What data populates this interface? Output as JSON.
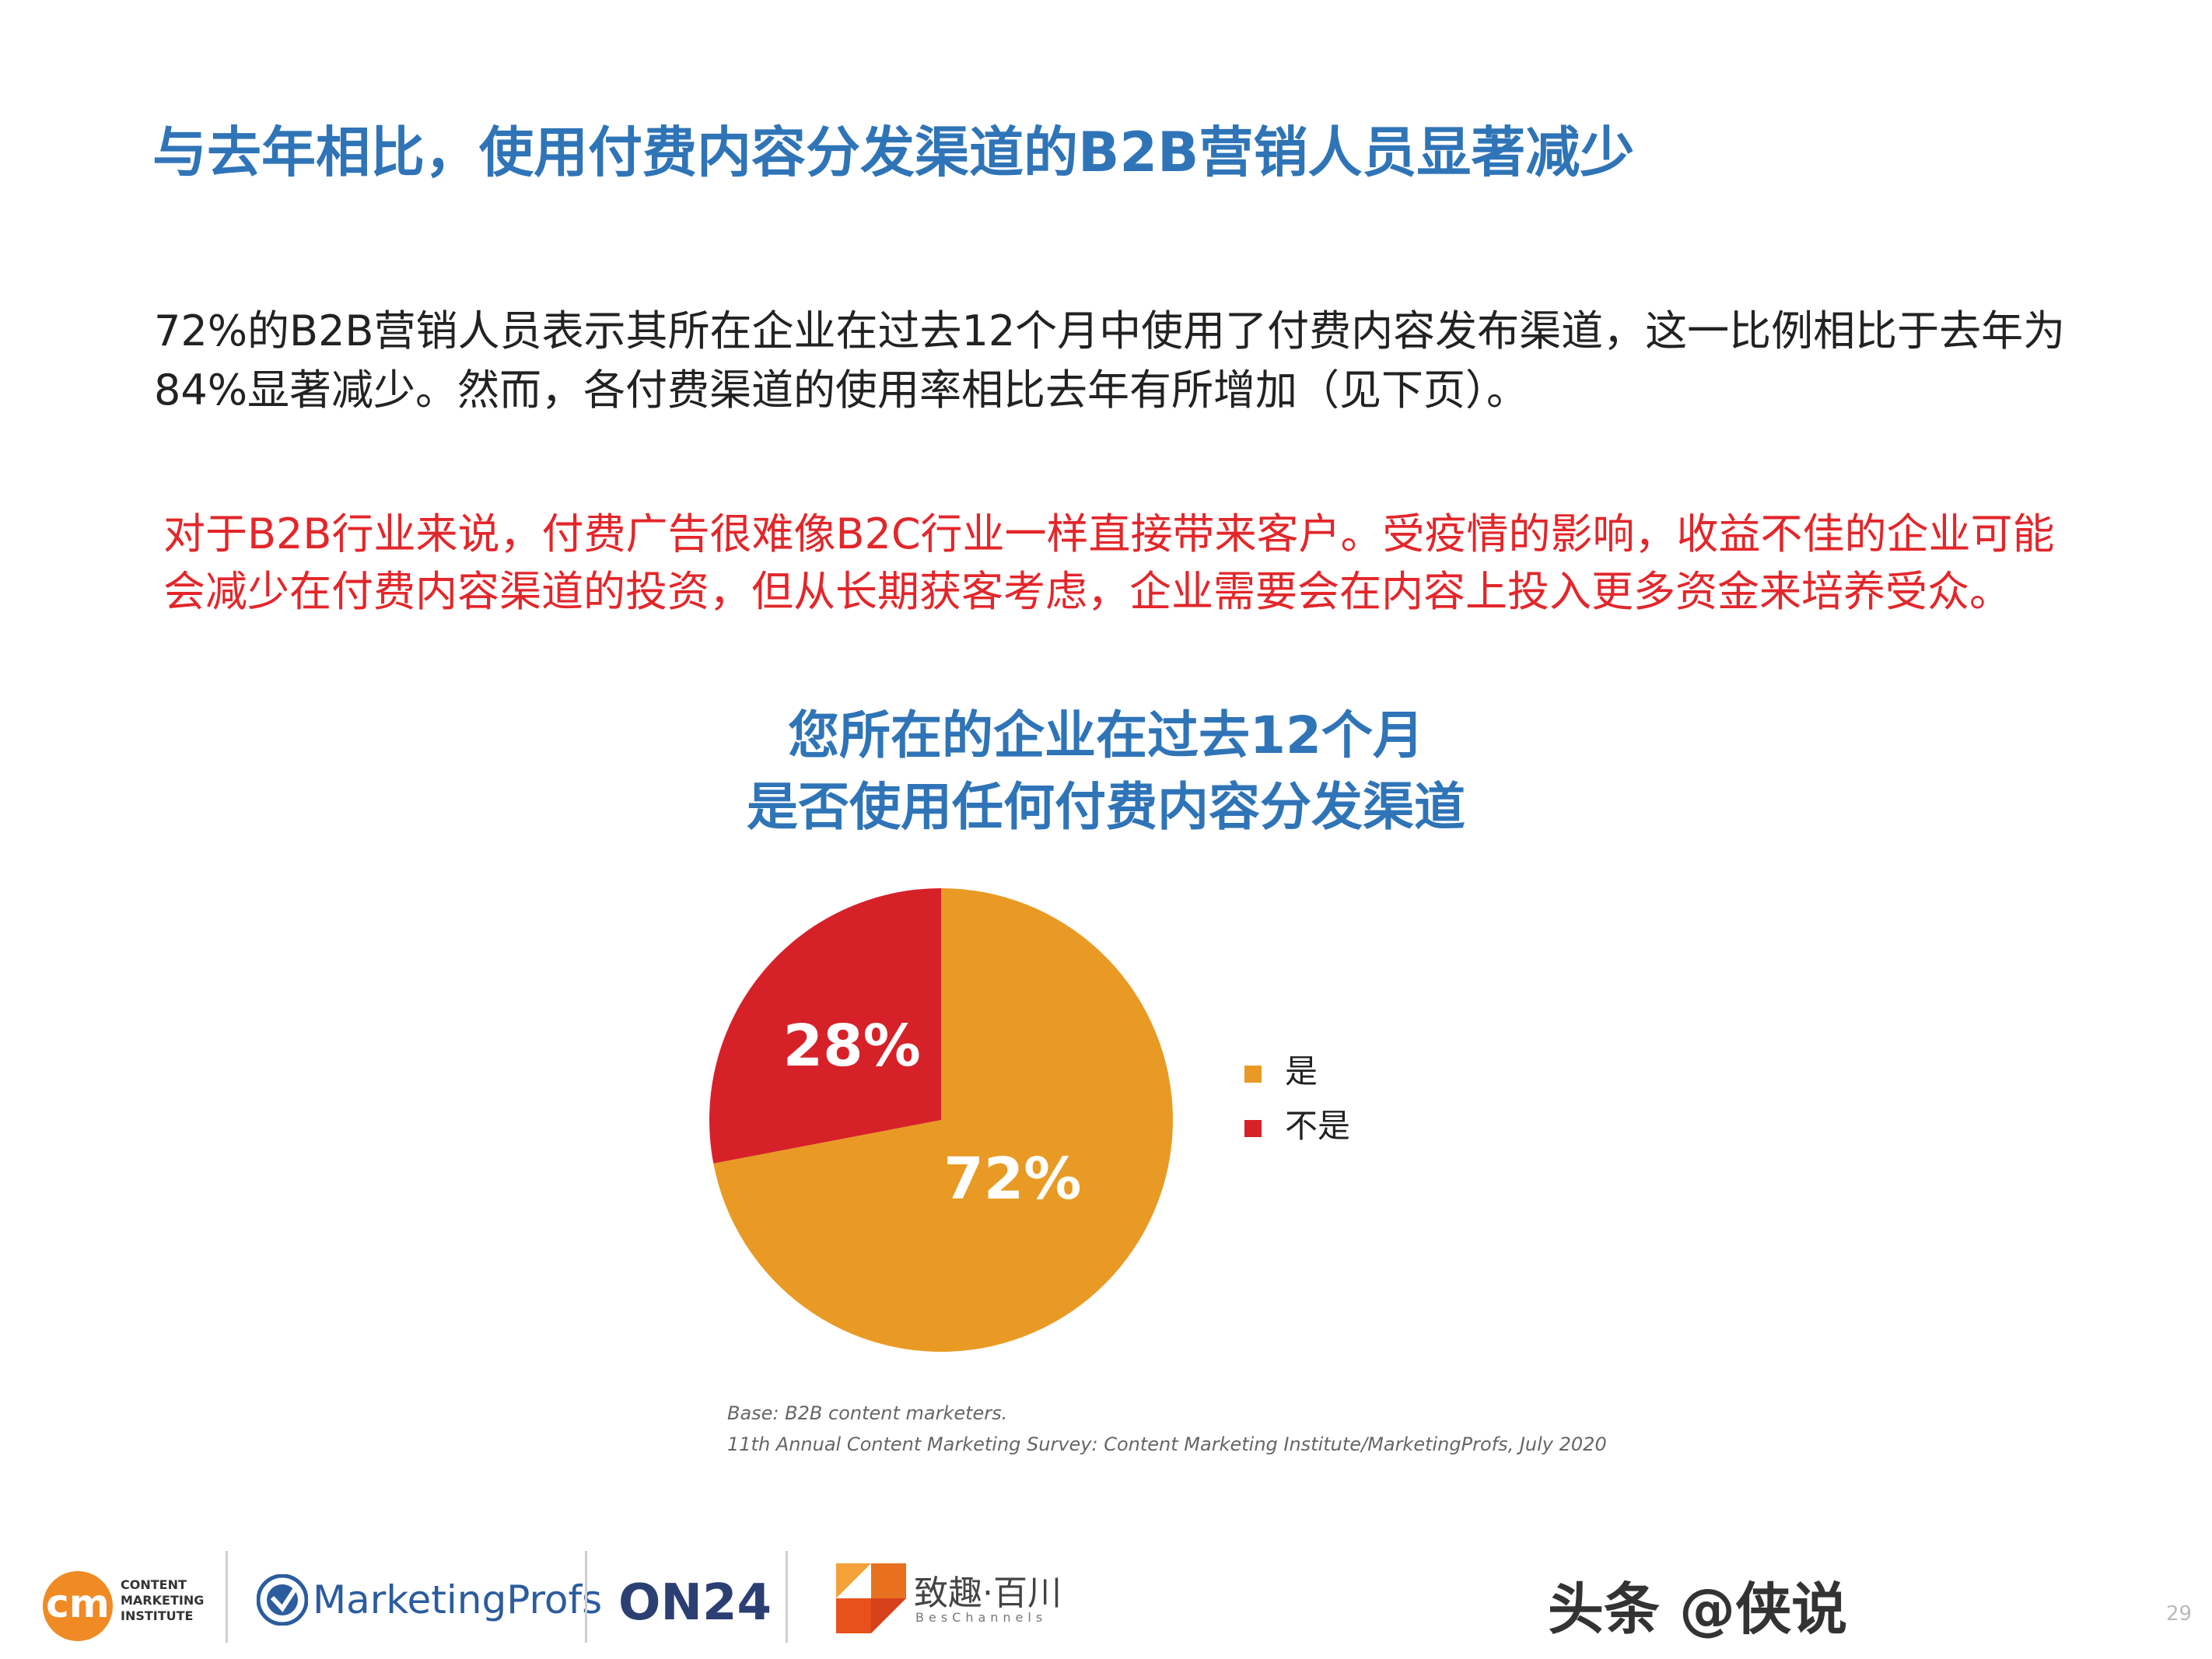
{
  "page_title": "与去年相比，使用付费内容分发渠道的B2B营销人员显著减少",
  "intro_text": "72%的B2B营销人员表示其所在企业在过去12个月中使用了付费内容发布渠道，这一比例相比于去年为84%显著减少。然而，各付费渠道的使用率相比去年有所增加（见下页）。",
  "highlight_text": "对于B2B行业来说，付费广告很难像B2C行业一样直接带来客户。受疫情的影响，收益不佳的企业可能会减少在付费内容渠道的投资，但从长期获客考虑，企业需要会在内容上投入更多资金来培养受众。",
  "chart_title_line1": "您所在的企业在过去12个月",
  "chart_title_line2": "是否使用任何付费内容分发渠道",
  "chart_data": {
    "type": "pie",
    "title": "您所在的企业在过去12个月 是否使用任何付费内容分发渠道",
    "slices": [
      {
        "label": "是",
        "value": 72,
        "display": "72%",
        "color": "#e99a24"
      },
      {
        "label": "不是",
        "value": 28,
        "display": "28%",
        "color": "#d62128"
      }
    ],
    "legend_position": "right"
  },
  "source_line1": "Base: B2B content marketers.",
  "source_line2": "11th Annual Content Marketing Survey: Content Marketing Institute/MarketingProfs, July 2020",
  "footer": {
    "cmi_mark": "cm",
    "cmi_line1": "CONTENT",
    "cmi_line2": "MARKETING",
    "cmi_line3": "INSTITUTE",
    "mp_name": "MarketingProfs",
    "on24_name": "ON24",
    "bes_name": "致趣·百川",
    "bes_sub": "BesChannels"
  },
  "watermark_text": "头条 @侠说",
  "page_number": "29"
}
